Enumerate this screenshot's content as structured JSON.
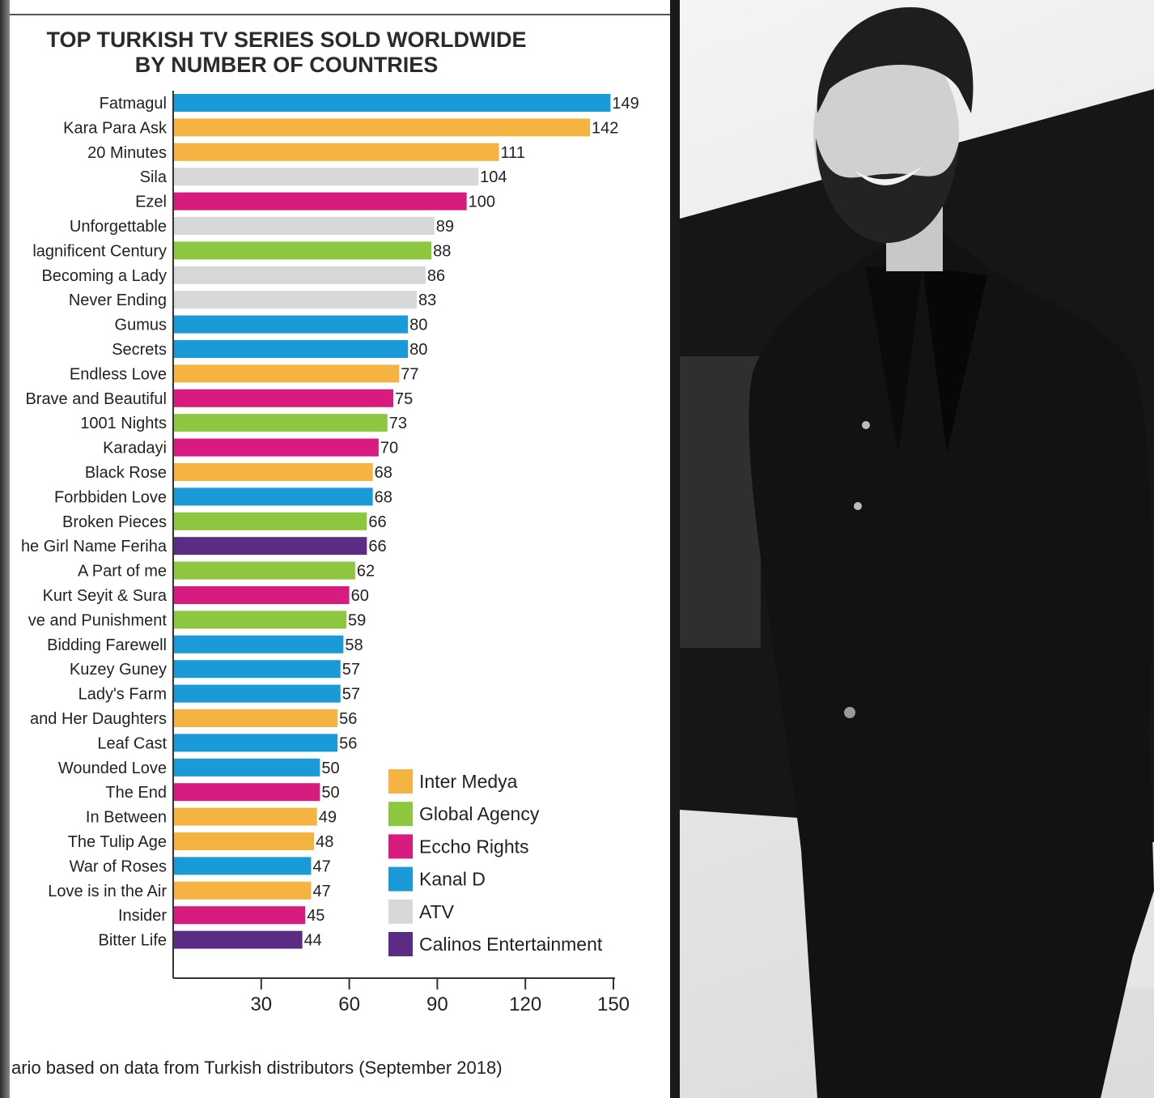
{
  "chart_data": {
    "type": "bar",
    "orientation": "horizontal",
    "title": [
      "TOP TURKISH TV SERIES SOLD WORLDWIDE",
      "BY NUMBER OF COUNTRIES"
    ],
    "xlim": [
      0,
      150
    ],
    "xticks": [
      30,
      60,
      90,
      120,
      150
    ],
    "source": "ario based on data from Turkish distributors (September 2018)",
    "legend_position": "bottom-right",
    "legend": [
      {
        "name": "Inter Medya",
        "color": "#F5B342"
      },
      {
        "name": "Global Agency",
        "color": "#8DC63F"
      },
      {
        "name": "Eccho Rights",
        "color": "#D81B7E"
      },
      {
        "name": "Kanal D",
        "color": "#1A9AD6"
      },
      {
        "name": "ATV",
        "color": "#D7D8DA"
      },
      {
        "name": "Calinos Entertainment",
        "color": "#5B2C83"
      }
    ],
    "categories": [
      "Fatmagul",
      "Kara Para Ask",
      "20 Minutes",
      "Sila",
      "Ezel",
      "Unforgettable",
      "lagnificent Century",
      "Becoming a Lady",
      "Never Ending",
      "Gumus",
      "Secrets",
      "Endless Love",
      "Brave and Beautiful",
      "1001 Nights",
      "Karadayi",
      "Black Rose",
      "Forbbiden Love",
      "Broken Pieces",
      "he Girl Name Feriha",
      "A Part of me",
      "Kurt Seyit & Sura",
      "ve and Punishment",
      "Bidding Farewell",
      "Kuzey Guney",
      "Lady's Farm",
      "and Her Daughters",
      "Leaf Cast",
      "Wounded Love",
      "The End",
      "In Between",
      "The Tulip Age",
      "War of Roses",
      "Love is in the Air",
      "Insider",
      "Bitter Life"
    ],
    "values": [
      149,
      142,
      111,
      104,
      100,
      89,
      88,
      86,
      83,
      80,
      80,
      77,
      75,
      73,
      70,
      68,
      68,
      66,
      66,
      62,
      60,
      59,
      58,
      57,
      57,
      56,
      56,
      50,
      50,
      49,
      48,
      47,
      47,
      45,
      44
    ],
    "distributors": [
      "Kanal D",
      "Inter Medya",
      "Inter Medya",
      "ATV",
      "Eccho Rights",
      "ATV",
      "Global Agency",
      "ATV",
      "ATV",
      "Kanal D",
      "Kanal D",
      "Inter Medya",
      "Eccho Rights",
      "Global Agency",
      "Eccho Rights",
      "Inter Medya",
      "Kanal D",
      "Global Agency",
      "Calinos Entertainment",
      "Global Agency",
      "Eccho Rights",
      "Global Agency",
      "Kanal D",
      "Kanal D",
      "Kanal D",
      "Inter Medya",
      "Kanal D",
      "Kanal D",
      "Eccho Rights",
      "Inter Medya",
      "Inter Medya",
      "Kanal D",
      "Inter Medya",
      "Eccho Rights",
      "Calinos Entertainment"
    ]
  }
}
